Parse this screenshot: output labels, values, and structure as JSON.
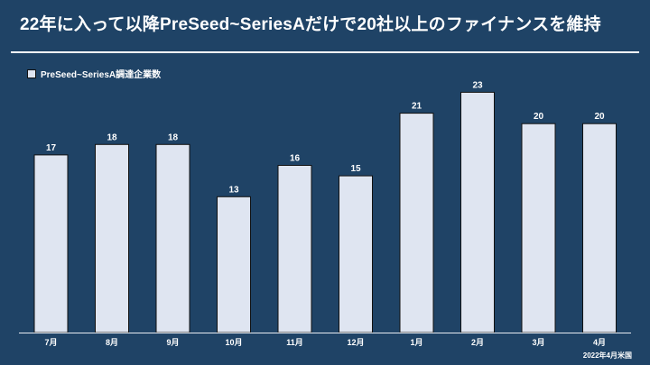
{
  "title": "22年に入って以降PreSeed~SeriesAだけで20社以上のファイナンスを維持",
  "source": "2022年4月米国",
  "colors": {
    "background": "#1f4366",
    "bar": "#dfe5f1",
    "bar_outline": "#111111",
    "text": "#ffffff"
  },
  "chart_data": {
    "type": "bar",
    "title": "",
    "xlabel": "",
    "ylabel": "",
    "categories": [
      "7月",
      "8月",
      "9月",
      "10月",
      "11月",
      "12月",
      "1月",
      "2月",
      "3月",
      "4月"
    ],
    "series": [
      {
        "name": "PreSeed~SeriesA調達企業数",
        "values": [
          17,
          18,
          18,
          13,
          16,
          15,
          21,
          23,
          20,
          20
        ]
      }
    ],
    "ylim": [
      0,
      24.5
    ],
    "grid": false,
    "legend": "top-left",
    "data_labels": true
  }
}
